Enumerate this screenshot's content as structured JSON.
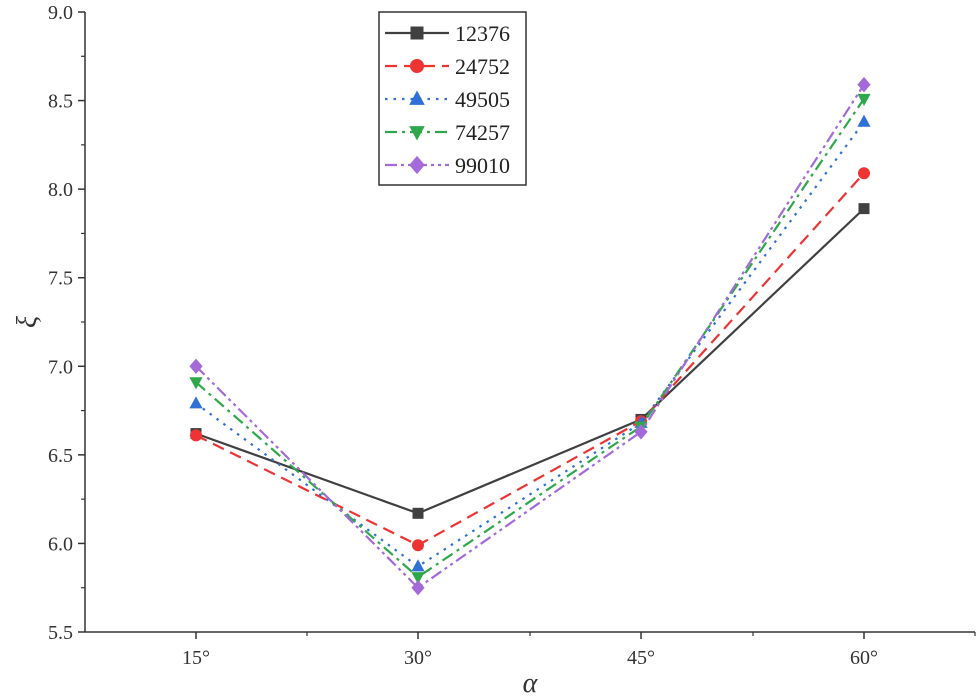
{
  "chart_data": {
    "type": "line",
    "title": "",
    "xlabel": "α",
    "ylabel": "ξ",
    "categories": [
      "15°",
      "30°",
      "45°",
      "60°"
    ],
    "ylim": [
      5.5,
      9.0
    ],
    "yticks": [
      "5.5",
      "6.0",
      "6.5",
      "7.0",
      "7.5",
      "8.0",
      "8.5",
      "9.0"
    ],
    "grid": false,
    "legend_position": "top-center",
    "series": [
      {
        "name": "12376",
        "values": [
          6.62,
          6.17,
          6.7,
          7.89
        ],
        "color": "#404040",
        "marker": "square",
        "dash": "solid"
      },
      {
        "name": "24752",
        "values": [
          6.61,
          5.99,
          6.69,
          8.09
        ],
        "color": "#ee3333",
        "marker": "circle",
        "dash": "dashed"
      },
      {
        "name": "49505",
        "values": [
          6.79,
          5.87,
          6.68,
          8.38
        ],
        "color": "#2f6fd6",
        "marker": "triangle-up",
        "dash": "dotted"
      },
      {
        "name": "74257",
        "values": [
          6.91,
          5.81,
          6.66,
          8.51
        ],
        "color": "#2ea84a",
        "marker": "triangle-down",
        "dash": "dash-dot"
      },
      {
        "name": "99010",
        "values": [
          7.0,
          5.75,
          6.63,
          8.59
        ],
        "color": "#a36ad8",
        "marker": "diamond",
        "dash": "dash-dot-dot"
      }
    ]
  }
}
